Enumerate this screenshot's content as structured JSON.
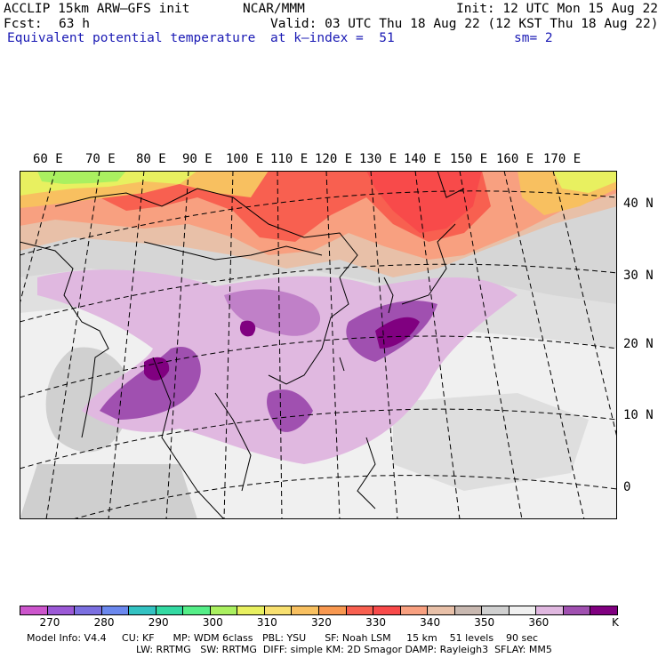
{
  "header": {
    "model": "ACCLIP 15km ARW–GFS init",
    "org": "NCAR/MMM",
    "init": "Init: 12 UTC Mon 15 Aug 22",
    "fcst_label": "Fcst:",
    "fcst_value": "63 h",
    "valid": "Valid: 03 UTC Thu 18 Aug 22 (12 KST Thu 18 Aug 22)",
    "field": "Equivalent potential temperature",
    "level": "at k–index =  51",
    "smooth": "sm= 2"
  },
  "map": {
    "longitude_labels": [
      "60 E",
      "70 E",
      "80 E",
      "90 E",
      "100 E",
      "110 E",
      "120 E",
      "130 E",
      "140 E",
      "150 E",
      "160 E",
      "170 E"
    ],
    "latitude_labels": [
      "40 N",
      "30 N",
      "20 N",
      "10 N",
      "0"
    ]
  },
  "colorbar": {
    "colors": [
      "#cc55cc",
      "#9b59d6",
      "#7b6fe0",
      "#6b88ee",
      "#33c2c2",
      "#33d9a2",
      "#55ee88",
      "#aaf060",
      "#e8f060",
      "#f8e070",
      "#f8c060",
      "#f89850",
      "#f86050",
      "#f84a4a",
      "#f8a080",
      "#e8c0a8",
      "#c8b8b0",
      "#d0d0d0",
      "#f0f0f0",
      "#e0b8e0",
      "#a050b0",
      "#800080"
    ],
    "labels": [
      "270",
      "280",
      "290",
      "300",
      "310",
      "320",
      "330",
      "340",
      "350",
      "360",
      "K"
    ]
  },
  "footer": {
    "line1": "Model Info: V4.4     CU: KF      MP: WDM 6class   PBL: YSU      SF: Noah LSM     15 km    51 levels    90 sec",
    "line2": "LW: RRTMG   SW: RRTMG  DIFF: simple KM: 2D Smagor DAMP: Rayleigh3  SFLAY: MM5"
  }
}
